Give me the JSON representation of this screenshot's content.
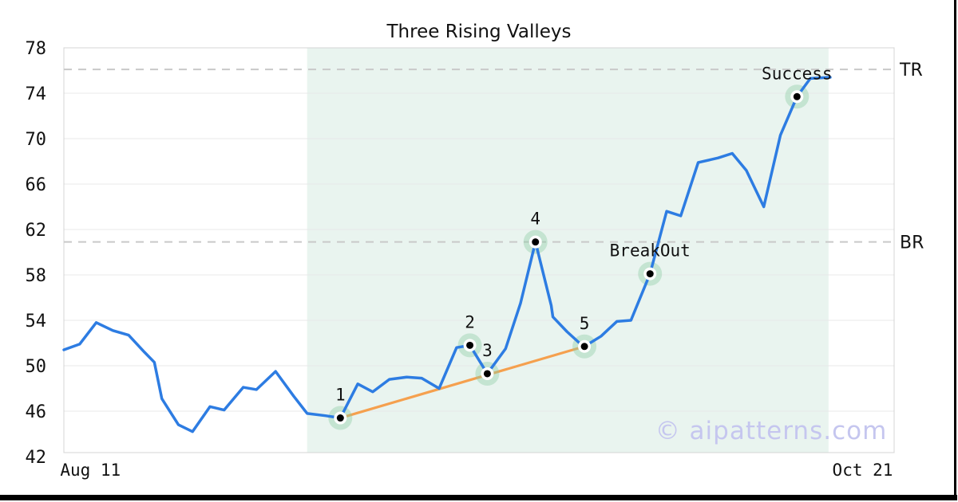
{
  "title": "Three Rising Valleys",
  "watermark": "© aipatterns.com",
  "x_axis": {
    "ticks": [
      {
        "label": "Aug 11",
        "f": 0.032
      },
      {
        "label": "Oct 21",
        "f": 0.962
      }
    ]
  },
  "y_axis": {
    "ticks": [
      78,
      74,
      70,
      66,
      62,
      58,
      54,
      50,
      46,
      42
    ]
  },
  "chart_data": {
    "type": "line",
    "title": "Three Rising Valleys",
    "xlabel": "",
    "ylabel": "",
    "x_range_labels": [
      "Aug 11",
      "Oct 21"
    ],
    "ylim": [
      42.35,
      78.0
    ],
    "grid": "horizontal",
    "grid_values": [
      74,
      70,
      66,
      62,
      58,
      54,
      50,
      46
    ],
    "legend": "none",
    "colors": {
      "price_line": "#2d7ce2",
      "trendline": "#f5a04e",
      "region": "#e9f4ef",
      "marker_halo": "rgba(140,205,165,0.40)",
      "marker_ring": "#ffffff",
      "marker_dot": "#000000",
      "grid": "#e8e8e8",
      "dashed": "#c9c9c9",
      "border": "#d4d4d4"
    },
    "shaded_region": {
      "x_start": 0.293,
      "x_end": 0.921
    },
    "hlines": [
      {
        "label": "TR",
        "value": 76.1,
        "style": "dashed"
      },
      {
        "label": "BR",
        "value": 60.9,
        "style": "dashed"
      }
    ],
    "trendline": {
      "points": [
        [
          0.333,
          45.4
        ],
        [
          0.627,
          51.7
        ]
      ]
    },
    "price_line": {
      "points": [
        [
          0.0,
          51.4
        ],
        [
          0.019,
          51.9
        ],
        [
          0.039,
          53.8
        ],
        [
          0.059,
          53.1
        ],
        [
          0.078,
          52.7
        ],
        [
          0.097,
          51.2
        ],
        [
          0.109,
          50.3
        ],
        [
          0.118,
          47.1
        ],
        [
          0.138,
          44.8
        ],
        [
          0.155,
          44.2
        ],
        [
          0.176,
          46.4
        ],
        [
          0.193,
          46.1
        ],
        [
          0.216,
          48.1
        ],
        [
          0.232,
          47.9
        ],
        [
          0.255,
          49.5
        ],
        [
          0.277,
          47.3
        ],
        [
          0.293,
          45.8
        ],
        [
          0.315,
          45.6
        ],
        [
          0.333,
          45.4
        ],
        [
          0.354,
          48.4
        ],
        [
          0.372,
          47.7
        ],
        [
          0.392,
          48.8
        ],
        [
          0.413,
          49.0
        ],
        [
          0.431,
          48.9
        ],
        [
          0.452,
          48.0
        ],
        [
          0.473,
          51.6
        ],
        [
          0.489,
          51.8
        ],
        [
          0.51,
          49.3
        ],
        [
          0.532,
          51.5
        ],
        [
          0.55,
          55.5
        ],
        [
          0.568,
          60.9
        ],
        [
          0.587,
          55.3
        ],
        [
          0.589,
          54.3
        ],
        [
          0.606,
          53.0
        ],
        [
          0.621,
          52.0
        ],
        [
          0.627,
          51.7
        ],
        [
          0.647,
          52.6
        ],
        [
          0.666,
          53.9
        ],
        [
          0.683,
          54.0
        ],
        [
          0.706,
          58.1
        ],
        [
          0.726,
          63.6
        ],
        [
          0.743,
          63.2
        ],
        [
          0.764,
          67.9
        ],
        [
          0.788,
          68.3
        ],
        [
          0.805,
          68.7
        ],
        [
          0.822,
          67.2
        ],
        [
          0.843,
          64.0
        ],
        [
          0.863,
          70.3
        ],
        [
          0.883,
          73.7
        ],
        [
          0.899,
          75.3
        ],
        [
          0.923,
          75.4
        ]
      ]
    },
    "markers": [
      {
        "label": "1",
        "x": 0.333,
        "value": 45.4
      },
      {
        "label": "2",
        "x": 0.489,
        "value": 51.8
      },
      {
        "label": "3",
        "x": 0.51,
        "value": 49.3
      },
      {
        "label": "4",
        "x": 0.568,
        "value": 60.9
      },
      {
        "label": "5",
        "x": 0.627,
        "value": 51.7
      },
      {
        "label": "BreakOut",
        "x": 0.706,
        "value": 58.1
      },
      {
        "label": "Success",
        "x": 0.883,
        "value": 73.7
      }
    ]
  }
}
